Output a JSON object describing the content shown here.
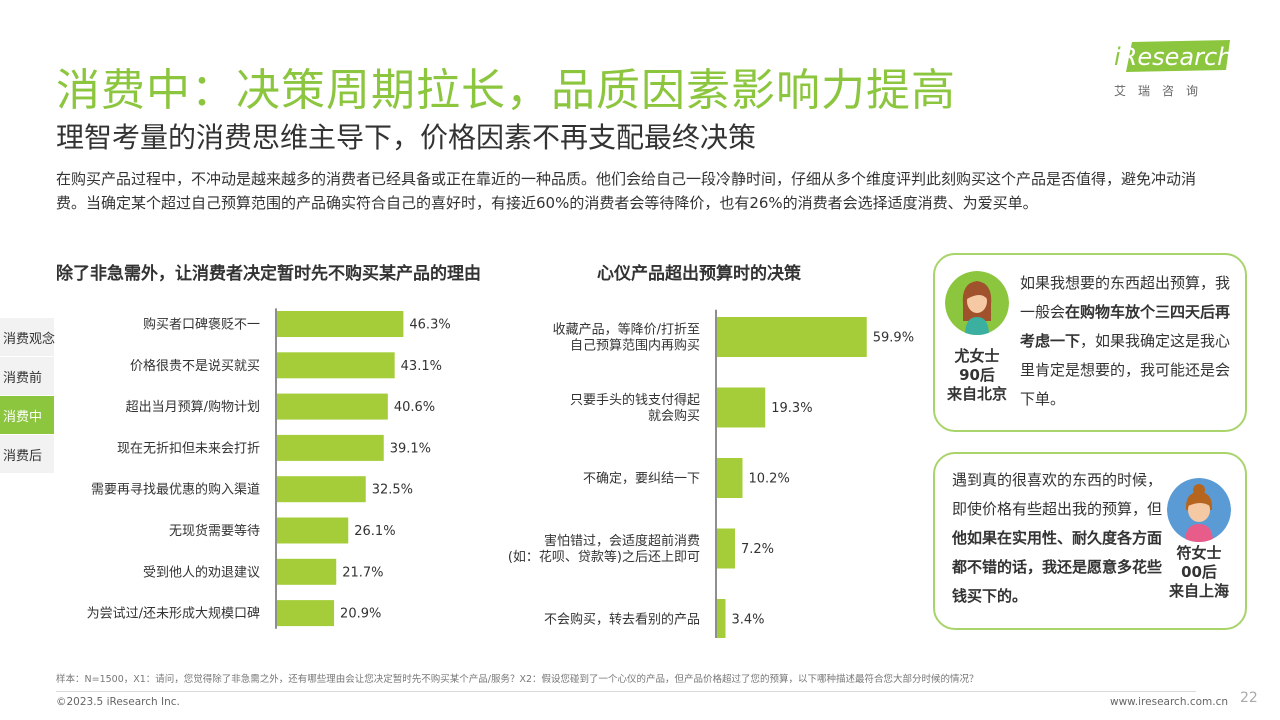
{
  "header": {
    "title": "消费中：决策周期拉长，品质因素影响力提高",
    "subtitle": "理智考量的消费思维主导下，价格因素不再支配最终决策",
    "intro": "在购买产品过程中，不冲动是越来越多的消费者已经具备或正在靠近的一种品质。他们会给自己一段冷静时间，仔细从多个维度评判此刻购买这个产品是否值得，避免冲动消费。当确定某个超过自己预算范围的产品确实符合自己的喜好时，有接近60%的消费者会等待降价，也有26%的消费者会选择适度消费、为爱买单。"
  },
  "logo": {
    "brand_i": "i",
    "brand_rest": "Research",
    "cn": "艾瑞咨询"
  },
  "side_nav": {
    "items": [
      {
        "label": "消费观念",
        "active": false
      },
      {
        "label": "消费前",
        "active": false
      },
      {
        "label": "消费中",
        "active": true
      },
      {
        "label": "消费后",
        "active": false
      }
    ]
  },
  "colors": {
    "accent": "#8cc63f",
    "bar": "#a5cd39",
    "border": "#a9d46b"
  },
  "chart_data": [
    {
      "type": "bar",
      "orientation": "horizontal",
      "title": "除了非急需外，让消费者决定暂时先不购买某产品的理由",
      "categories": [
        "购买者口碑褒贬不一",
        "价格很贵不是说买就买",
        "超出当月预算/购物计划",
        "现在无折扣但未来会打折",
        "需要再寻找最优惠的购入渠道",
        "无现货需要等待",
        "受到他人的劝退建议",
        "为尝试过/还未形成大规模口碑"
      ],
      "values": [
        46.3,
        43.1,
        40.6,
        39.1,
        32.5,
        26.1,
        21.7,
        20.9
      ],
      "value_labels": [
        "46.3%",
        "43.1%",
        "40.6%",
        "39.1%",
        "32.5%",
        "26.1%",
        "21.7%",
        "20.9%"
      ],
      "unit": "%"
    },
    {
      "type": "bar",
      "orientation": "horizontal",
      "title": "心仪产品超出预算时的决策",
      "categories": [
        [
          "收藏产品，等降价/打折至",
          "自己预算范围内再购买"
        ],
        [
          "只要手头的钱支付得起",
          "就会购买"
        ],
        [
          "不确定，要纠结一下"
        ],
        [
          "害怕错过，会适度超前消费",
          "(如：花呗、贷款等)之后还上即可"
        ],
        [
          "不会购买，转去看别的产品"
        ]
      ],
      "values": [
        59.9,
        19.3,
        10.2,
        7.2,
        3.4
      ],
      "value_labels": [
        "59.9%",
        "19.3%",
        "10.2%",
        "7.2%",
        "3.4%"
      ],
      "unit": "%"
    }
  ],
  "quotes": [
    {
      "segments": [
        {
          "text": "如果我想要的东西超出预算，我一般会",
          "bold": false
        },
        {
          "text": "在购物车放个三四天后再考虑一下",
          "bold": true
        },
        {
          "text": "，如果我确定这是我心里肯定是想要的，我可能还是会下单。",
          "bold": false
        }
      ],
      "person_name": "尤女士",
      "person_age": "90后",
      "person_city": "来自北京"
    },
    {
      "segments": [
        {
          "text": "遇到真的很喜欢的东西的时候，即使价格有些超出我的预算，但",
          "bold": false
        },
        {
          "text": "他如果在实用性、耐久度各方面都不错的话，我还是愿意多花些钱买下的。",
          "bold": true
        }
      ],
      "person_name": "符女士",
      "person_age": "00后",
      "person_city": "来自上海"
    }
  ],
  "footer": {
    "note": "样本：N=1500，X1：请问，您觉得除了非急需之外，还有哪些理由会让您决定暂时先不购买某个产品/服务？X2：假设您碰到了一个心仪的产品，但产品价格超过了您的预算，以下哪种描述最符合您大部分时候的情况？",
    "copyright": "©2023.5 iResearch Inc.",
    "website": "www.iresearch.com.cn",
    "page": "22"
  }
}
